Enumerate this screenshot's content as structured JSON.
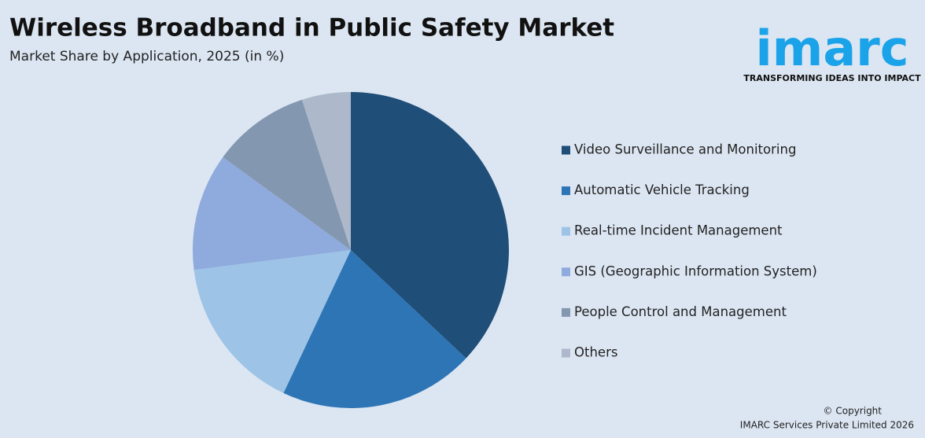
{
  "chart_data": {
    "type": "pie",
    "title": "Wireless Broadband in Public Safety Market",
    "subtitle": "Market Share by Application, 2025 (in %)",
    "categories": [
      "Video Surveillance and Monitoring",
      "Automatic Vehicle Tracking",
      "Real-time Incident Management",
      "GIS (Geographic Information System)",
      "People Control and Management",
      "Others"
    ],
    "values": [
      37,
      20,
      16,
      12,
      10,
      5
    ],
    "colors": [
      "#1f4e79",
      "#2e75b6",
      "#9dc3e6",
      "#8faadc",
      "#8497b0",
      "#adb9ca"
    ],
    "legend": "right"
  },
  "logo": {
    "name": "imarc",
    "tagline": "TRANSFORMING IDEAS INTO IMPACT"
  },
  "footer": {
    "copyright": "© Copyright",
    "company": "IMARC Services Private Limited 2026"
  }
}
